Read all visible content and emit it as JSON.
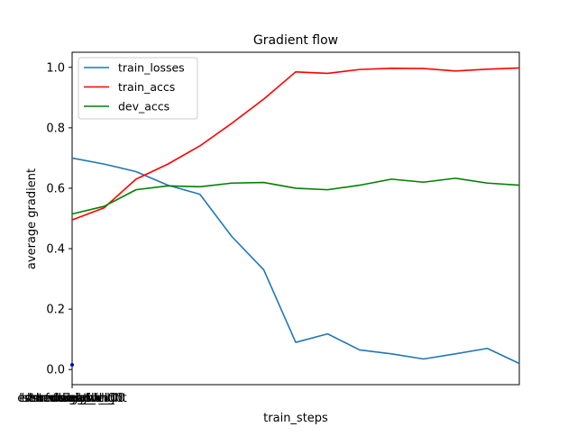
{
  "chart_data": {
    "type": "line",
    "title": "Gradient flow",
    "xlabel": "train_steps",
    "ylabel": "average gradient",
    "ylim": [
      -0.05,
      1.05
    ],
    "xlim": [
      0,
      14
    ],
    "x": [
      0,
      1,
      2,
      3,
      4,
      5,
      6,
      7,
      8,
      9,
      10,
      11,
      12,
      13,
      14
    ],
    "yticks": [
      0.0,
      0.2,
      0.4,
      0.6,
      0.8,
      1.0
    ],
    "ytick_labels": [
      "0.0",
      "0.2",
      "0.4",
      "0.6",
      "0.8",
      "1.0"
    ],
    "xtick_labels_note": "overlapping labels at x=0 rendered as illegible stack",
    "xtick_labels": [
      "lstm.weight_ih_l0",
      "lstm.weight_hh_l0",
      "lstm.bias_ih_l0",
      "lstm.bias_hh_l0",
      "fc.weight",
      "fc.bias",
      "embedding.weight"
    ],
    "grid": false,
    "legend_position": "top-left",
    "series": [
      {
        "name": "train_losses",
        "color": "#1f77b4",
        "values": [
          0.7,
          0.68,
          0.655,
          0.61,
          0.58,
          0.44,
          0.33,
          0.09,
          0.118,
          0.065,
          0.052,
          0.035,
          0.052,
          0.07,
          0.02
        ]
      },
      {
        "name": "train_accs",
        "color": "#ff0000",
        "values": [
          0.495,
          0.535,
          0.63,
          0.68,
          0.74,
          0.815,
          0.895,
          0.985,
          0.98,
          0.993,
          0.997,
          0.996,
          0.988,
          0.994,
          0.998
        ]
      },
      {
        "name": "dev_accs",
        "color": "#008000",
        "values": [
          0.515,
          0.54,
          0.595,
          0.608,
          0.605,
          0.617,
          0.619,
          0.6,
          0.595,
          0.61,
          0.63,
          0.62,
          0.633,
          0.617,
          0.61
        ]
      }
    ]
  }
}
